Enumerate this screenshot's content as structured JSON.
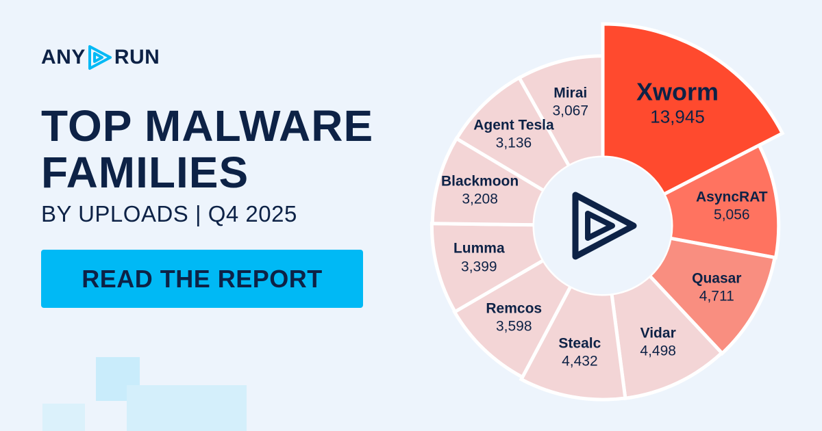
{
  "brand": {
    "left": "ANY",
    "right": "RUN"
  },
  "headline": {
    "title": "TOP MALWARE FAMILIES",
    "subtitle": "BY UPLOADS | Q4 2025"
  },
  "button": "READ THE REPORT",
  "chart_data": {
    "type": "rose",
    "categories": [
      "Xworm",
      "AsyncRAT",
      "Quasar",
      "Vidar",
      "Stealc",
      "Remcos",
      "Lumma",
      "Blackmoon",
      "Agent Tesla",
      "Mirai"
    ],
    "values": [
      13945,
      5056,
      4711,
      4498,
      4432,
      3598,
      3399,
      3208,
      3136,
      3067
    ],
    "value_labels": [
      "13,945",
      "5,056",
      "4,711",
      "4,498",
      "4,432",
      "3,598",
      "3,399",
      "3,208",
      "3,136",
      "3,067"
    ],
    "colors": [
      "#ff4a2e",
      "#ff7360",
      "#f98e80",
      "#f3d5d6",
      "#f3d5d6",
      "#f3d5d6",
      "#f3d5d6",
      "#f3d5d6",
      "#f3d5d6",
      "#f3d5d6"
    ]
  }
}
